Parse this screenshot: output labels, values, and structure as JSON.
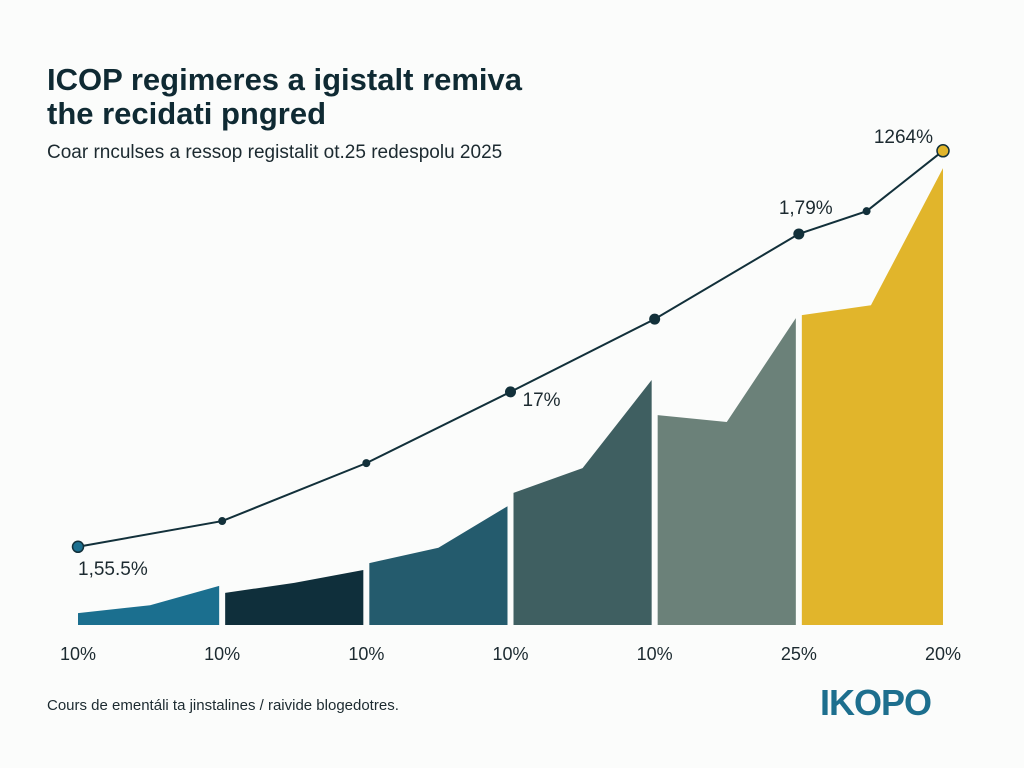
{
  "title_lines": [
    "ICOP regimeres a igistalt remiva",
    "the recidati pngred"
  ],
  "subtitle": "Coar rnculses a ressop registalit ot.25 redespolu 2025",
  "footnote": "Cours de ementáli ta jinstalines / raivide blogedotres.",
  "logo": "IKOPO",
  "chart_data": {
    "type": "area",
    "title": "ICOP regimeres a igistalt remiva the recidati pngred",
    "subtitle": "Coar rnculses a ressop registalit ot.25 redespolu 2025",
    "x_tick_labels": [
      "10%",
      "10%",
      "10%",
      "10%",
      "10%",
      "25%",
      "20%"
    ],
    "xlim": [
      0,
      6
    ],
    "ylim": [
      0,
      100
    ],
    "grid": false,
    "legend": "none",
    "area_segments": [
      {
        "x": [
          0,
          0.5,
          1
        ],
        "values": [
          2.4,
          4.0,
          7.9
        ],
        "color": "#1b6f8f"
      },
      {
        "x": [
          1,
          1.5,
          2
        ],
        "values": [
          6.5,
          8.5,
          11.1
        ],
        "color": "#0f2f3b"
      },
      {
        "x": [
          2,
          2.5,
          3
        ],
        "values": [
          12.5,
          15.6,
          24.0
        ],
        "color": "#245b6d"
      },
      {
        "x": [
          3,
          4.5,
          4
        ],
        "values": [
          26.7,
          31.7,
          49.5
        ],
        "color": "#3f5f61"
      },
      {
        "x": [
          4,
          4.5,
          5
        ],
        "values": [
          42.4,
          41.0,
          62.0
        ],
        "color": "#6b8179"
      },
      {
        "x": [
          5,
          5.5,
          6
        ],
        "values": [
          62.6,
          64.6,
          92.3
        ],
        "color": "#e1b52b"
      }
    ],
    "line_series": {
      "x": [
        0,
        1,
        2,
        3,
        4,
        5,
        5.47,
        6
      ],
      "values": [
        15.8,
        21.0,
        32.7,
        47.1,
        61.8,
        79.0,
        83.6,
        95.8
      ],
      "color": "#12303a",
      "end_marker_color": "#e1b52b"
    },
    "annotations": [
      {
        "text": "1,55.5%",
        "x": 0,
        "y": 15.8
      },
      {
        "text": "17%",
        "x": 3,
        "y": 47.1
      },
      {
        "text": "1,79%",
        "x": 5,
        "y": 79.0
      },
      {
        "text": "1264%",
        "x": 6,
        "y": 95.8
      }
    ]
  }
}
